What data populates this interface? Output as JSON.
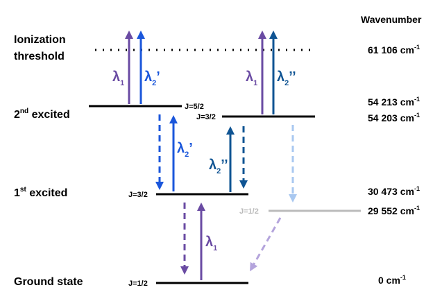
{
  "colors": {
    "lambda1": "#6A4BA3",
    "lambda2_prime": "#1A56DB",
    "lambda2_dprime": "#0F5493",
    "decay_light_blue": "#A9C8F0",
    "decay_light_purple": "#B4A4DC",
    "gray_level": "#BBBBBB"
  },
  "levels": {
    "ionization": {
      "name_line1": "Ionization",
      "name_line2": "threshold",
      "wavenumber": "61 106 cm",
      "unit_exp": "-1"
    },
    "second_excited": {
      "name": "2",
      "name_sup": "nd",
      "name_rest": " excited",
      "j_a": "J=5/2",
      "j_b": "J=3/2",
      "wavenumber_a": "54 213 cm",
      "wavenumber_b": "54 203 cm",
      "unit_exp": "-1"
    },
    "first_excited": {
      "name": "1",
      "name_sup": "st",
      "name_rest": " excited",
      "j_a": "J=3/2",
      "j_b": "J=1/2",
      "wavenumber_a": "30 473 cm",
      "wavenumber_b": "29 552 cm",
      "unit_exp": "-1"
    },
    "ground": {
      "name": "Ground state",
      "j": "J=1/2",
      "wavenumber": "0 cm",
      "unit_exp": "-1"
    }
  },
  "header": {
    "wavenumber": "Wavenumber"
  },
  "labels": {
    "lambda": "λ",
    "sub1": "1",
    "sub2": "2",
    "prime": "’",
    "dprime": "’’"
  }
}
